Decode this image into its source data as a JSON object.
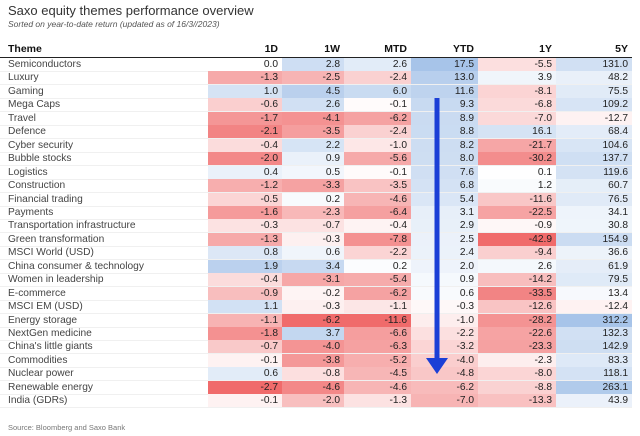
{
  "title": "Saxo equity themes performance overview",
  "subtitle": "Sorted on year-to-date return (updated as of 16/3//2023)",
  "source": "Source: Bloomberg and Saxo Bank",
  "chart_data": {
    "type": "table",
    "columns": [
      "Theme",
      "1D",
      "1W",
      "MTD",
      "YTD",
      "1Y",
      "5Y"
    ],
    "rows": [
      {
        "theme": "Semiconductors",
        "values": [
          "0.0",
          "2.8",
          "2.6",
          "17.5",
          "-5.5",
          "131.0"
        ]
      },
      {
        "theme": "Luxury",
        "values": [
          "-1.3",
          "-2.5",
          "-2.4",
          "13.0",
          "3.9",
          "48.2"
        ]
      },
      {
        "theme": "Gaming",
        "values": [
          "1.0",
          "4.5",
          "6.0",
          "11.6",
          "-8.1",
          "75.5"
        ]
      },
      {
        "theme": "Mega Caps",
        "values": [
          "-0.6",
          "2.6",
          "-0.1",
          "9.3",
          "-6.8",
          "109.2"
        ]
      },
      {
        "theme": "Travel",
        "values": [
          "-1.7",
          "-4.1",
          "-6.2",
          "8.9",
          "-7.0",
          "-12.7"
        ]
      },
      {
        "theme": "Defence",
        "values": [
          "-2.1",
          "-3.5",
          "-2.4",
          "8.8",
          "16.1",
          "68.4"
        ]
      },
      {
        "theme": "Cyber security",
        "values": [
          "-0.4",
          "2.2",
          "-1.0",
          "8.2",
          "-21.7",
          "104.6"
        ]
      },
      {
        "theme": "Bubble stocks",
        "values": [
          "-2.0",
          "0.9",
          "-5.6",
          "8.0",
          "-30.2",
          "137.7"
        ]
      },
      {
        "theme": "Logistics",
        "values": [
          "0.4",
          "0.5",
          "-0.1",
          "7.6",
          "0.1",
          "119.6"
        ]
      },
      {
        "theme": "Construction",
        "values": [
          "-1.2",
          "-3.3",
          "-3.5",
          "6.8",
          "1.2",
          "60.7"
        ]
      },
      {
        "theme": "Financial trading",
        "values": [
          "-0.5",
          "0.2",
          "-4.6",
          "5.4",
          "-11.6",
          "76.5"
        ]
      },
      {
        "theme": "Payments",
        "values": [
          "-1.6",
          "-2.3",
          "-6.4",
          "3.1",
          "-22.5",
          "34.1"
        ]
      },
      {
        "theme": "Transportation infrastructure",
        "values": [
          "-0.3",
          "-0.7",
          "-0.4",
          "2.9",
          "-0.9",
          "30.8"
        ]
      },
      {
        "theme": "Green transformation",
        "values": [
          "-1.3",
          "-0.3",
          "-7.8",
          "2.5",
          "-42.9",
          "154.9"
        ]
      },
      {
        "theme": "MSCI World (USD)",
        "values": [
          "0.8",
          "0.6",
          "-2.2",
          "2.4",
          "-9.4",
          "36.6"
        ]
      },
      {
        "theme": "China consumer & technology",
        "values": [
          "1.9",
          "3.4",
          "0.2",
          "2.0",
          "2.6",
          "61.9"
        ]
      },
      {
        "theme": "Women in leadership",
        "values": [
          "-0.4",
          "-3.1",
          "-5.4",
          "0.9",
          "-14.2",
          "79.5"
        ]
      },
      {
        "theme": "E-commerce",
        "values": [
          "-0.9",
          "-0.2",
          "-6.2",
          "0.6",
          "-33.5",
          "13.4"
        ]
      },
      {
        "theme": "MSCI EM (USD)",
        "values": [
          "1.1",
          "-0.3",
          "-1.1",
          "-0.3",
          "-12.6",
          "-12.4"
        ]
      },
      {
        "theme": "Energy storage",
        "values": [
          "-1.1",
          "-6.2",
          "-11.6",
          "-1.0",
          "-28.2",
          "312.2"
        ]
      },
      {
        "theme": "NextGen medicine",
        "values": [
          "-1.8",
          "3.7",
          "-6.6",
          "-2.2",
          "-22.6",
          "132.3"
        ]
      },
      {
        "theme": "China's little giants",
        "values": [
          "-0.7",
          "-4.0",
          "-6.3",
          "-3.2",
          "-23.3",
          "142.9"
        ]
      },
      {
        "theme": "Commodities",
        "values": [
          "-0.1",
          "-3.8",
          "-5.2",
          "-4.0",
          "-2.3",
          "83.3"
        ]
      },
      {
        "theme": "Nuclear power",
        "values": [
          "0.6",
          "-0.8",
          "-4.5",
          "-4.8",
          "-8.0",
          "118.1"
        ]
      },
      {
        "theme": "Renewable energy",
        "values": [
          "-2.7",
          "-4.6",
          "-4.6",
          "-6.2",
          "-8.8",
          "263.1"
        ]
      },
      {
        "theme": "India (GDRs)",
        "values": [
          "-0.1",
          "-2.0",
          "-1.3",
          "-7.0",
          "-13.3",
          "43.9"
        ]
      }
    ],
    "color_scale": {
      "positive": "#9dbde6",
      "negative": "#ee5a5a"
    },
    "annotation": "blue downward arrow over the YTD column"
  }
}
